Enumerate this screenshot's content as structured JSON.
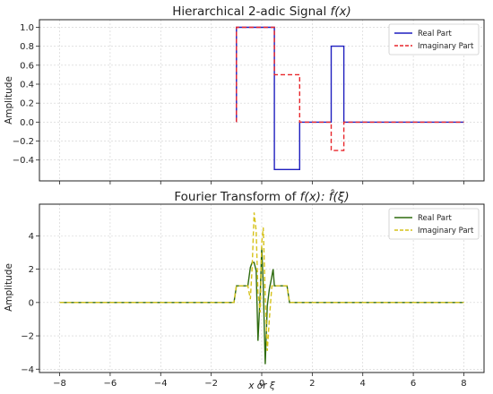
{
  "chart_data": [
    {
      "type": "line",
      "title": "Hierarchical 2-adic Signal f(x)",
      "title_parts": {
        "text": "Hierarchical 2-adic Signal ",
        "math": "f(x)"
      },
      "xlabel": "",
      "ylabel": "Amplitude",
      "xlim": [
        -8.8,
        8.8
      ],
      "ylim": [
        -0.62,
        1.08
      ],
      "xticks": [
        -8,
        -6,
        -4,
        -2,
        0,
        2,
        4,
        6,
        8
      ],
      "xtick_labels_visible": false,
      "yticks": [
        -0.4,
        -0.2,
        0.0,
        0.2,
        0.4,
        0.6,
        0.8,
        1.0
      ],
      "ytick_labels": [
        "−0.4",
        "−0.2",
        "0.0",
        "0.2",
        "0.4",
        "0.6",
        "0.8",
        "1.0"
      ],
      "grid": true,
      "legend": "top-right",
      "series": [
        {
          "name": "Real Part",
          "color": "#1f1fbf",
          "dash": "solid",
          "x": [
            -1.0,
            -1.0,
            0.5,
            0.5,
            1.5,
            1.5,
            2.75,
            2.75,
            3.25,
            3.25,
            8.0
          ],
          "y": [
            0.0,
            1.0,
            1.0,
            -0.5,
            -0.5,
            0.0,
            0.0,
            0.8,
            0.8,
            0.0,
            0.0
          ]
        },
        {
          "name": "Imaginary Part",
          "color": "#e8262b",
          "dash": "dashed",
          "x": [
            -1.0,
            -1.0,
            0.5,
            0.5,
            1.5,
            1.5,
            2.75,
            2.75,
            3.25,
            3.25,
            8.0
          ],
          "y": [
            0.0,
            1.0,
            1.0,
            0.5,
            0.5,
            0.0,
            0.0,
            -0.3,
            -0.3,
            0.0,
            0.0
          ]
        }
      ]
    },
    {
      "type": "line",
      "title": "Fourier Transform of f(x): f̂(ξ)",
      "title_parts": {
        "text": "Fourier Transform of ",
        "math": "f(x): f̂(ξ)"
      },
      "xlabel": "x or ξ",
      "ylabel": "Amplitude",
      "xlim": [
        -8.8,
        8.8
      ],
      "ylim": [
        -4.2,
        5.9
      ],
      "xticks": [
        -8,
        -6,
        -4,
        -2,
        0,
        2,
        4,
        6,
        8
      ],
      "xtick_labels": [
        "−8",
        "−6",
        "−4",
        "−2",
        "0",
        "2",
        "4",
        "6",
        "8"
      ],
      "yticks": [
        -4,
        -2,
        0,
        2,
        4
      ],
      "ytick_labels": [
        "−4",
        "−2",
        "0",
        "2",
        "4"
      ],
      "grid": true,
      "legend": "top-right",
      "series": [
        {
          "name": "Real Part",
          "color": "#2e6b0f",
          "dash": "solid",
          "x": [
            -8.0,
            -1.1,
            -1.0,
            -0.55,
            -0.45,
            -0.38,
            -0.3,
            -0.22,
            -0.15,
            -0.06,
            0.0,
            0.06,
            0.14,
            0.22,
            0.3,
            0.38,
            0.45,
            0.5,
            0.6,
            1.0,
            1.1,
            8.0
          ],
          "y": [
            0.0,
            0.0,
            1.0,
            1.0,
            2.1,
            2.4,
            2.4,
            1.9,
            -2.3,
            0.5,
            3.3,
            1.0,
            -3.7,
            -0.2,
            0.8,
            1.4,
            2.0,
            1.0,
            1.0,
            1.0,
            0.0,
            0.0
          ]
        },
        {
          "name": "Imaginary Part",
          "color": "#d6c21a",
          "dash": "dashed",
          "x": [
            -8.0,
            -1.1,
            -1.0,
            -0.55,
            -0.45,
            -0.38,
            -0.3,
            -0.22,
            -0.15,
            -0.06,
            0.0,
            0.06,
            0.14,
            0.22,
            0.3,
            0.4,
            0.5,
            0.6,
            1.0,
            1.1,
            8.0
          ],
          "y": [
            0.0,
            0.0,
            1.0,
            1.0,
            0.2,
            2.1,
            5.4,
            4.3,
            0.6,
            -0.6,
            3.6,
            4.5,
            0.4,
            -2.9,
            -1.0,
            1.0,
            1.0,
            1.0,
            1.0,
            0.0,
            0.0
          ]
        }
      ]
    }
  ]
}
